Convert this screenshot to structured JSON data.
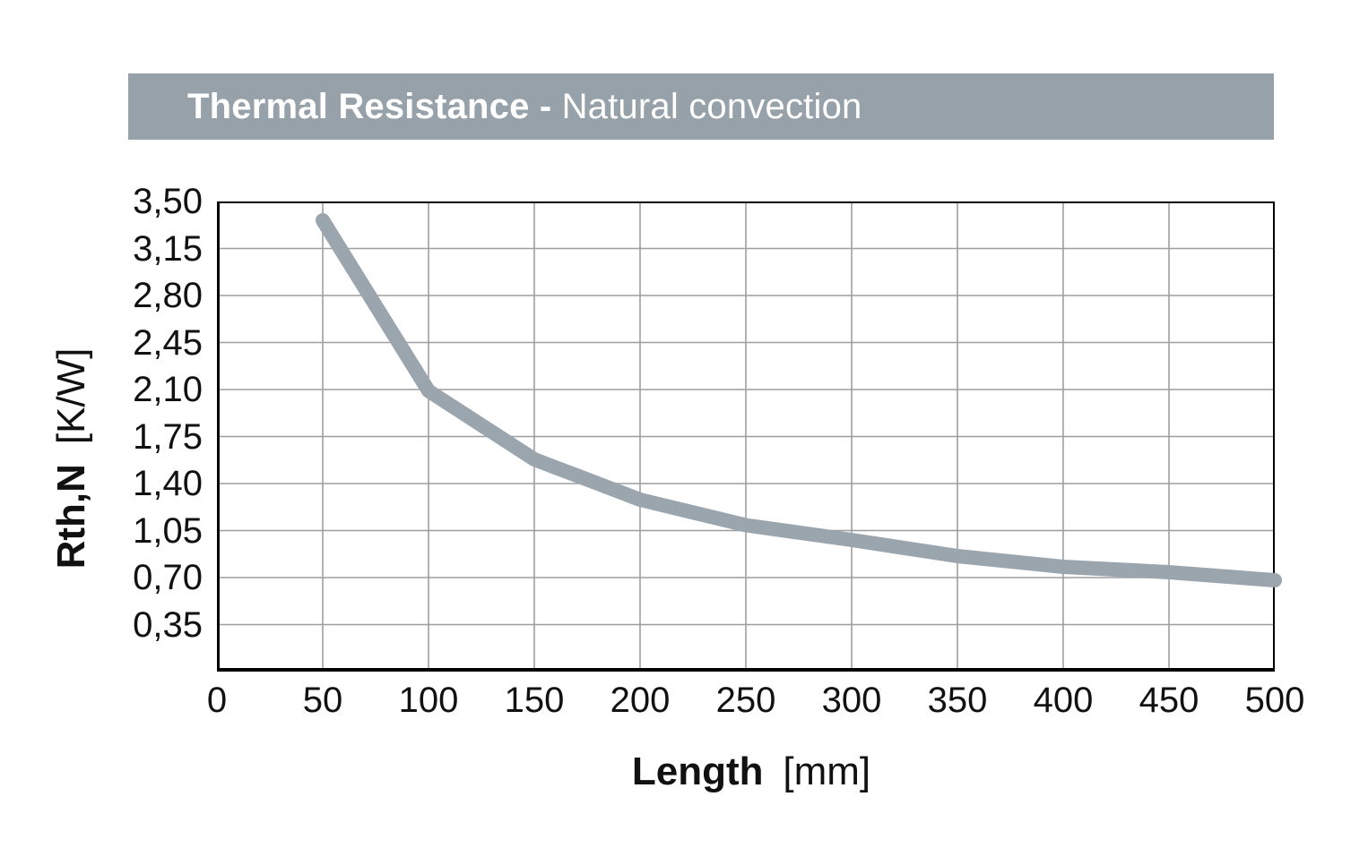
{
  "header": {
    "title_bold": "Thermal Resistance -",
    "title_regular": "Natural convection"
  },
  "chart_data": {
    "type": "line",
    "title": "Thermal Resistance - Natural convection",
    "xlabel": "Length [mm]",
    "ylabel": "Rth,N [K/W]",
    "xlabel_bold": "Length",
    "xlabel_unit": "[mm]",
    "ylabel_bold": "Rth,N",
    "ylabel_unit": "[K/W]",
    "x": [
      50,
      100,
      150,
      200,
      250,
      300,
      350,
      400,
      450,
      500
    ],
    "y": [
      3.36,
      2.09,
      1.58,
      1.28,
      1.09,
      0.98,
      0.86,
      0.78,
      0.74,
      0.68
    ],
    "series_name": "Rth,N natural convection",
    "xlim": [
      0,
      500
    ],
    "ylim": [
      0,
      3.5
    ],
    "xticks": [
      {
        "label": "0",
        "value": 0
      },
      {
        "label": "50",
        "value": 50
      },
      {
        "label": "100",
        "value": 100
      },
      {
        "label": "150",
        "value": 150
      },
      {
        "label": "200",
        "value": 200
      },
      {
        "label": "250",
        "value": 250
      },
      {
        "label": "300",
        "value": 300
      },
      {
        "label": "350",
        "value": 350
      },
      {
        "label": "400",
        "value": 400
      },
      {
        "label": "450",
        "value": 450
      },
      {
        "label": "500",
        "value": 500
      }
    ],
    "yticks": [
      {
        "label": "3,50",
        "value": 3.5
      },
      {
        "label": "3,15",
        "value": 3.15
      },
      {
        "label": "2,80",
        "value": 2.8
      },
      {
        "label": "2,45",
        "value": 2.45
      },
      {
        "label": "2,10",
        "value": 2.1
      },
      {
        "label": "1,75",
        "value": 1.75
      },
      {
        "label": "1,40",
        "value": 1.4
      },
      {
        "label": "1,05",
        "value": 1.05
      },
      {
        "label": "0,70",
        "value": 0.7
      },
      {
        "label": "0,35",
        "value": 0.35
      }
    ],
    "grid": true,
    "legend": "none",
    "colors": {
      "line": "#9aa5ae",
      "grid": "#9e9e9e",
      "axis": "#000000",
      "header_bg": "#96a1a9",
      "header_text": "#ffffff",
      "label_text": "#111111"
    }
  }
}
